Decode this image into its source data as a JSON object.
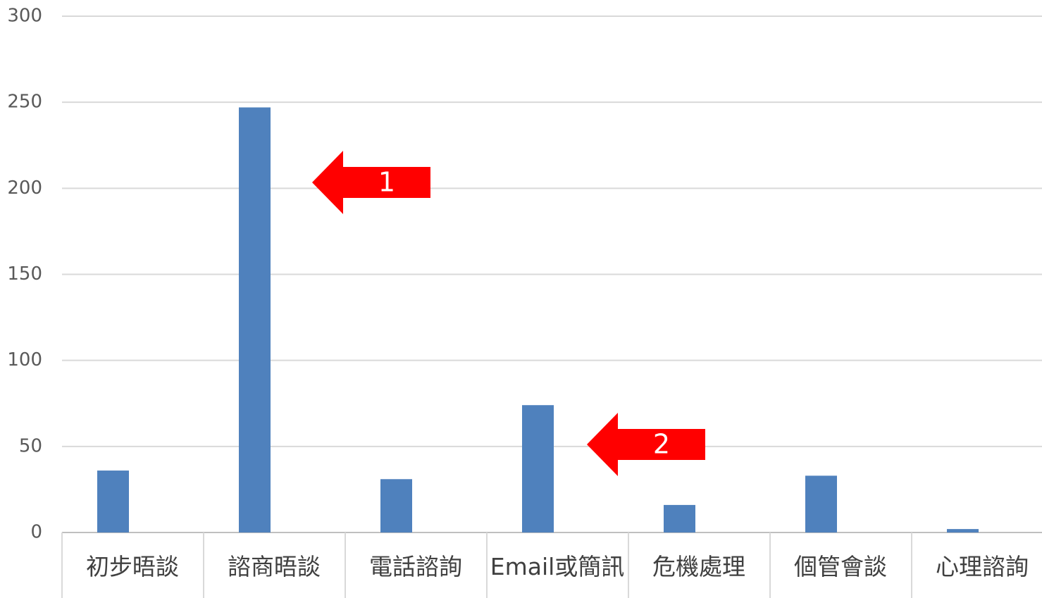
{
  "chart_data": {
    "type": "bar",
    "categories": [
      "初步晤談",
      "諮商晤談",
      "電話諮詢",
      "Email或簡訊",
      "危機處理",
      "個管會談",
      "心理諮詢"
    ],
    "values": [
      36,
      247,
      31,
      74,
      16,
      33,
      2
    ],
    "color": "#4f81bd",
    "ylim": [
      0,
      300
    ],
    "yticks": [
      0,
      50,
      100,
      150,
      200,
      250,
      300
    ],
    "grid": true,
    "annotations": [
      {
        "text": "1",
        "color": "#ff0000"
      },
      {
        "text": "2",
        "color": "#ff0000"
      }
    ]
  }
}
